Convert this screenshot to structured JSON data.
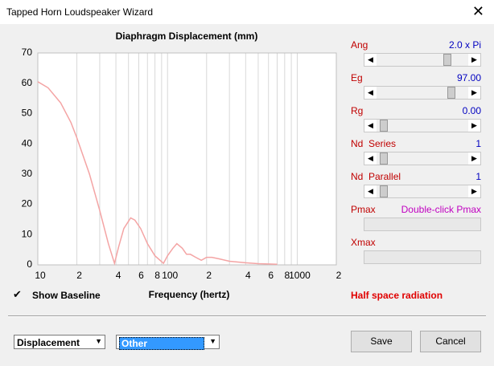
{
  "window": {
    "title": "Tapped Horn Loudspeaker Wizard"
  },
  "chart_data": {
    "type": "line",
    "title": "Diaphragm Displacement (mm)",
    "x_label": "Frequency (hertz)",
    "x_log": true,
    "grid": true,
    "color": "#f4a4a4",
    "x": [
      10,
      12,
      15,
      18,
      20,
      25,
      30,
      35,
      39,
      42,
      46,
      52,
      56,
      62,
      70,
      80,
      93,
      100,
      110,
      118,
      130,
      140,
      150,
      165,
      182,
      200,
      220,
      250,
      300,
      400,
      500,
      600,
      700
    ],
    "values": [
      60.5,
      58.5,
      53.5,
      47,
      42,
      30,
      18,
      7,
      0.5,
      6,
      12,
      15.5,
      14.8,
      12,
      7,
      3,
      0.5,
      3,
      5.5,
      7,
      5.5,
      3.5,
      3.5,
      2.5,
      1.5,
      2.5,
      2.5,
      2,
      1.2,
      0.7,
      0.4,
      0.3,
      0.2
    ],
    "xlim": [
      10,
      2000
    ],
    "ylim": [
      0,
      70
    ],
    "xticks": [
      10,
      {
        "value": 20,
        "label": "2"
      },
      {
        "value": 40,
        "label": "4"
      },
      {
        "value": 60,
        "label": "6"
      },
      {
        "value": 80,
        "label": "8"
      },
      100,
      {
        "value": 200,
        "label": "2"
      },
      {
        "value": 400,
        "label": "4"
      },
      {
        "value": 600,
        "label": "6"
      },
      {
        "value": 800,
        "label": "8"
      },
      1000,
      {
        "value": 2000,
        "label": "2"
      }
    ],
    "minor_xticks": [
      30,
      50,
      70,
      90,
      300,
      500,
      700,
      900
    ],
    "yticks": [
      0,
      10,
      20,
      30,
      40,
      50,
      60,
      70
    ]
  },
  "controls": {
    "sliders": [
      {
        "label": "Ang",
        "value": "2.0 x Pi"
      },
      {
        "label": "Eg",
        "value": "97.00"
      },
      {
        "label": "Rg",
        "value": "0.00"
      },
      {
        "label": "Nd  Series",
        "value": "1"
      },
      {
        "label": "Nd  Parallel",
        "value": "1"
      },
      {
        "label": "Pmax",
        "value": "Double-click Pmax"
      },
      {
        "label": "Xmax"
      }
    ],
    "checkbox": "Show Baseline",
    "radiation": "Half space radiation",
    "dropdowns": [
      "Displacement",
      "Other"
    ],
    "buttons": [
      "Save",
      "Cancel"
    ]
  }
}
